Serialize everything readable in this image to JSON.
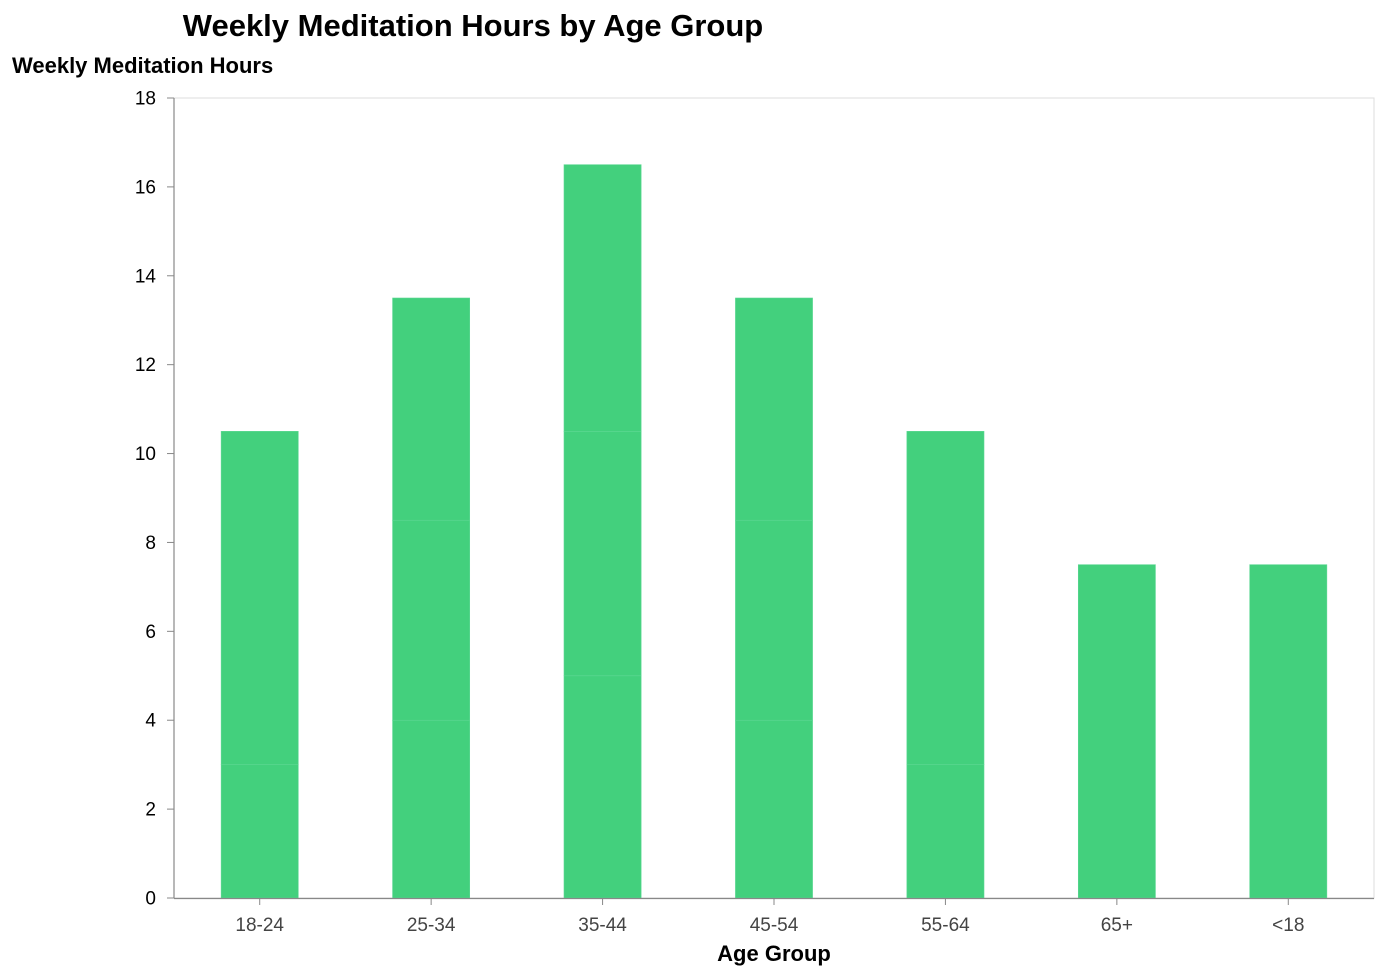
{
  "chart_data": {
    "type": "bar",
    "stacked": true,
    "title": "Weekly Meditation Hours by Age Group",
    "xlabel": "Age Group",
    "ylabel": "Weekly Meditation Hours",
    "ylim": [
      0,
      18
    ],
    "yticks": [
      "0",
      "2",
      "4",
      "6",
      "8",
      "10",
      "12",
      "14",
      "16",
      "18"
    ],
    "grid": false,
    "bar_color": "#43d07d",
    "categories": [
      "18-24",
      "25-34",
      "35-44",
      "45-54",
      "55-64",
      "65+",
      "<18"
    ],
    "segments": [
      [
        3,
        7.5
      ],
      [
        4,
        4.5,
        5
      ],
      [
        5,
        5.5,
        6
      ],
      [
        4,
        4.5,
        5
      ],
      [
        3,
        7.5
      ],
      [
        7.5
      ],
      [
        7.5
      ]
    ],
    "totals": [
      10.5,
      13.5,
      16.5,
      13.5,
      10.5,
      7.5,
      7.5
    ]
  }
}
